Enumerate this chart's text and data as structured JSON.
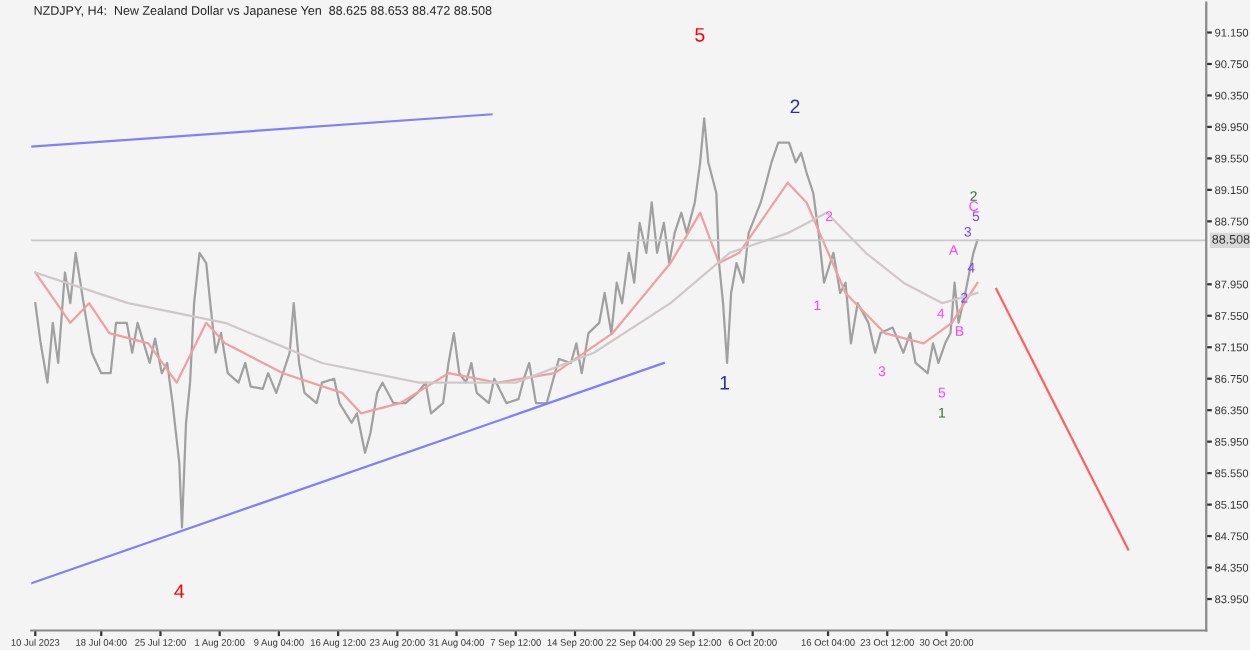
{
  "chart_data": {
    "type": "line",
    "title": "NZDJPY, H4:  New Zealand Dollar vs Japanese Yen  88.625 88.653 88.472 88.508",
    "xlim": [
      "2023-07-09T12:00",
      "2023-12-02T00:00"
    ],
    "xticks": [
      {
        "value": "2023-07-10T00:00",
        "label": "10 Jul 2023"
      },
      {
        "value": "2023-07-18T04:00",
        "label": "18 Jul 04:00"
      },
      {
        "value": "2023-07-25T12:00",
        "label": "25 Jul 12:00"
      },
      {
        "value": "2023-08-01T20:00",
        "label": "1 Aug 20:00"
      },
      {
        "value": "2023-08-09T04:00",
        "label": "9 Aug 04:00"
      },
      {
        "value": "2023-08-16T12:00",
        "label": "16 Aug 12:00"
      },
      {
        "value": "2023-08-23T20:00",
        "label": "23 Aug 20:00"
      },
      {
        "value": "2023-08-31T04:00",
        "label": "31 Aug 04:00"
      },
      {
        "value": "2023-09-07T12:00",
        "label": "7 Sep 12:00"
      },
      {
        "value": "2023-09-14T20:00",
        "label": "14 Sep 20:00"
      },
      {
        "value": "2023-09-22T04:00",
        "label": "22 Sep 04:00"
      },
      {
        "value": "2023-09-29T12:00",
        "label": "29 Sep 12:00"
      },
      {
        "value": "2023-10-06T20:00",
        "label": "6 Oct 20:00"
      },
      {
        "value": "2023-10-16T04:00",
        "label": "16 Oct 04:00"
      },
      {
        "value": "2023-10-23T12:00",
        "label": "23 Oct 12:00"
      },
      {
        "value": "2023-10-30T20:00",
        "label": "30 Oct 20:00"
      }
    ],
    "ylim": [
      83.55,
      91.53
    ],
    "yticks": [
      {
        "value": 91.15,
        "label": "91.150"
      },
      {
        "value": 90.75,
        "label": "90.750"
      },
      {
        "value": 90.35,
        "label": "90.350"
      },
      {
        "value": 89.95,
        "label": "89.950"
      },
      {
        "value": 89.55,
        "label": "89.550"
      },
      {
        "value": 89.15,
        "label": "89.150"
      },
      {
        "value": 88.75,
        "label": "88.750"
      },
      {
        "value": 87.95,
        "label": "87.950"
      },
      {
        "value": 87.55,
        "label": "87.550"
      },
      {
        "value": 87.15,
        "label": "87.150"
      },
      {
        "value": 86.75,
        "label": "86.750"
      },
      {
        "value": 86.35,
        "label": "86.350"
      },
      {
        "value": 85.95,
        "label": "85.950"
      },
      {
        "value": 85.55,
        "label": "85.550"
      },
      {
        "value": 85.15,
        "label": "85.150"
      },
      {
        "value": 84.75,
        "label": "84.750"
      },
      {
        "value": 84.35,
        "label": "84.350"
      },
      {
        "value": 83.95,
        "label": "83.950"
      }
    ],
    "ref_lines": [
      {
        "axis": "y",
        "value": 88.508,
        "label": "88.508",
        "color": "#c8c8c8"
      }
    ],
    "series": [
      {
        "color": "#a0a0a0",
        "x": [
          "2023-07-10T00:00",
          "2023-07-10T16:00",
          "2023-07-11T12:00",
          "2023-07-12T04:00",
          "2023-07-12T20:00",
          "2023-07-13T16:00",
          "2023-07-14T08:00",
          "2023-07-15T00:00",
          "2023-07-16T04:00",
          "2023-07-17T00:00",
          "2023-07-18T04:00",
          "2023-07-19T08:00",
          "2023-07-20T00:00",
          "2023-07-21T08:00",
          "2023-07-22T00:00",
          "2023-07-22T16:00",
          "2023-07-24T04:00",
          "2023-07-24T20:00",
          "2023-07-25T16:00",
          "2023-07-26T08:00",
          "2023-07-27T00:00",
          "2023-07-27T20:00",
          "2023-07-28T04:00",
          "2023-07-28T16:00",
          "2023-07-29T04:00",
          "2023-07-29T16:00",
          "2023-07-30T08:00",
          "2023-07-31T04:00",
          "2023-07-31T16:00",
          "2023-08-01T08:00",
          "2023-08-02T00:00",
          "2023-08-02T20:00",
          "2023-08-04T04:00",
          "2023-08-05T00:00",
          "2023-08-05T16:00",
          "2023-08-07T04:00",
          "2023-08-07T20:00",
          "2023-08-08T20:00",
          "2023-08-09T16:00",
          "2023-08-10T12:00",
          "2023-08-11T00:00",
          "2023-08-11T16:00",
          "2023-08-12T08:00",
          "2023-08-13T20:00",
          "2023-08-14T12:00",
          "2023-08-16T00:00",
          "2023-08-16T16:00",
          "2023-08-18T04:00",
          "2023-08-18T20:00",
          "2023-08-19T20:00",
          "2023-08-20T12:00",
          "2023-08-21T08:00",
          "2023-08-22T00:00",
          "2023-08-23T08:00",
          "2023-08-24T20:00",
          "2023-08-26T08:00",
          "2023-08-27T08:00",
          "2023-08-28T00:00",
          "2023-08-29T12:00",
          "2023-08-30T04:00",
          "2023-08-30T20:00",
          "2023-08-31T12:00",
          "2023-09-01T08:00",
          "2023-09-02T00:00",
          "2023-09-02T16:00",
          "2023-09-04T04:00",
          "2023-09-04T20:00",
          "2023-09-06T08:00",
          "2023-09-07T20:00",
          "2023-09-08T12:00",
          "2023-09-09T04:00",
          "2023-09-10T00:00",
          "2023-09-11T08:00",
          "2023-09-12T20:00",
          "2023-09-14T08:00",
          "2023-09-15T00:00",
          "2023-09-15T16:00",
          "2023-09-16T12:00",
          "2023-09-17T20:00",
          "2023-09-18T12:00",
          "2023-09-19T08:00",
          "2023-09-20T00:00",
          "2023-09-20T16:00",
          "2023-09-21T12:00",
          "2023-09-22T04:00",
          "2023-09-22T20:00",
          "2023-09-23T16:00",
          "2023-09-24T08:00",
          "2023-09-25T00:00",
          "2023-09-25T20:00",
          "2023-09-26T12:00",
          "2023-09-27T04:00",
          "2023-09-28T00:00",
          "2023-09-28T16:00",
          "2023-09-29T16:00",
          "2023-09-30T08:00",
          "2023-09-30T20:00",
          "2023-10-01T08:00",
          "2023-10-02T08:00",
          "2023-10-02T16:00",
          "2023-10-03T04:00",
          "2023-10-03T16:00",
          "2023-10-04T04:00",
          "2023-10-04T20:00",
          "2023-10-05T16:00",
          "2023-10-06T08:00",
          "2023-10-07T20:00",
          "2023-10-08T12:00",
          "2023-10-09T04:00",
          "2023-10-10T00:00",
          "2023-10-11T08:00",
          "2023-10-12T04:00",
          "2023-10-12T20:00",
          "2023-10-13T12:00",
          "2023-10-14T08:00",
          "2023-10-15T00:00",
          "2023-10-15T16:00",
          "2023-10-16T20:00",
          "2023-10-17T16:00",
          "2023-10-18T08:00",
          "2023-10-19T00:00",
          "2023-10-19T20:00",
          "2023-10-21T04:00",
          "2023-10-22T00:00",
          "2023-10-22T16:00",
          "2023-10-24T04:00",
          "2023-10-25T12:00",
          "2023-10-26T08:00",
          "2023-10-27T00:00",
          "2023-10-28T12:00",
          "2023-10-29T04:00",
          "2023-10-29T20:00",
          "2023-10-30T16:00",
          "2023-10-31T08:00",
          "2023-10-31T20:00",
          "2023-11-01T08:00",
          "2023-11-02T04:00",
          "2023-11-02T16:00",
          "2023-11-03T04:00",
          "2023-11-03T16:00"
        ],
        "values": [
          87.71,
          87.2,
          86.7,
          87.46,
          86.95,
          88.1,
          87.71,
          88.35,
          87.59,
          87.08,
          86.82,
          86.82,
          87.46,
          87.46,
          87.08,
          87.46,
          86.95,
          87.26,
          86.82,
          86.95,
          86.44,
          85.68,
          84.86,
          86.19,
          86.7,
          87.71,
          88.35,
          88.22,
          87.71,
          87.08,
          87.33,
          86.82,
          86.7,
          86.95,
          86.65,
          86.62,
          86.82,
          86.57,
          86.82,
          87.08,
          87.71,
          86.95,
          86.57,
          86.44,
          86.7,
          86.75,
          86.44,
          86.19,
          86.31,
          85.81,
          86.06,
          86.57,
          86.7,
          86.44,
          86.44,
          86.57,
          86.7,
          86.31,
          86.44,
          86.95,
          87.33,
          86.82,
          86.7,
          86.95,
          86.57,
          86.44,
          86.75,
          86.44,
          86.49,
          86.75,
          86.95,
          86.44,
          86.44,
          87.0,
          86.95,
          87.2,
          86.82,
          87.33,
          87.46,
          87.84,
          87.33,
          87.97,
          87.71,
          88.35,
          87.97,
          88.73,
          88.35,
          88.99,
          88.35,
          88.73,
          88.22,
          88.6,
          88.86,
          88.6,
          88.99,
          89.5,
          90.06,
          89.5,
          89.11,
          88.22,
          87.71,
          86.95,
          87.84,
          88.22,
          87.97,
          88.6,
          88.99,
          89.24,
          89.5,
          89.75,
          89.75,
          89.5,
          89.62,
          89.37,
          89.11,
          88.6,
          87.97,
          88.35,
          87.84,
          87.97,
          87.2,
          87.71,
          87.46,
          87.08,
          87.33,
          87.4,
          87.08,
          87.33,
          86.95,
          86.82,
          87.2,
          86.95,
          87.2,
          87.33,
          87.97,
          87.46,
          87.84,
          88.1,
          88.35,
          88.51
        ]
      },
      {
        "color": "#f0a0a0",
        "x": [
          "2023-07-10T00:00",
          "2023-07-14T08:00",
          "2023-07-16T16:00",
          "2023-07-19T04:00",
          "2023-07-24T00:00",
          "2023-07-27T12:00",
          "2023-07-31T04:00",
          "2023-08-02T12:00",
          "2023-08-09T16:00",
          "2023-08-17T00:00",
          "2023-08-19T08:00",
          "2023-08-24T04:00",
          "2023-08-30T04:00",
          "2023-09-05T04:00",
          "2023-09-12T08:00",
          "2023-09-19T12:00",
          "2023-09-26T16:00",
          "2023-09-30T08:00",
          "2023-10-02T16:00",
          "2023-10-05T04:00",
          "2023-10-11T04:00",
          "2023-10-13T12:00",
          "2023-10-18T08:00",
          "2023-10-23T04:00",
          "2023-10-28T00:00",
          "2023-10-31T12:00",
          "2023-11-03T16:00"
        ],
        "values": [
          88.1,
          87.46,
          87.71,
          87.33,
          87.2,
          86.7,
          87.46,
          87.2,
          86.82,
          86.57,
          86.31,
          86.44,
          86.82,
          86.7,
          86.82,
          87.33,
          88.22,
          88.86,
          88.22,
          88.35,
          89.24,
          88.99,
          87.84,
          87.33,
          87.2,
          87.46,
          87.97
        ]
      },
      {
        "color": "#d0c8c8",
        "x": [
          "2023-07-10T00:00",
          "2023-07-21T12:00",
          "2023-08-02T12:00",
          "2023-08-14T12:00",
          "2023-08-26T12:00",
          "2023-09-07T12:00",
          "2023-09-17T04:00",
          "2023-09-26T16:00",
          "2023-10-04T00:00",
          "2023-10-11T04:00",
          "2023-10-16T00:00",
          "2023-10-20T20:00",
          "2023-10-25T12:00",
          "2023-10-30T08:00",
          "2023-11-03T16:00"
        ],
        "values": [
          88.1,
          87.71,
          87.46,
          86.95,
          86.7,
          86.7,
          87.08,
          87.71,
          88.35,
          88.6,
          88.86,
          88.35,
          87.97,
          87.71,
          87.84
        ]
      },
      {
        "color": "#8080ff",
        "x": [
          "2023-07-09T12:00",
          "2023-09-04T12:00"
        ],
        "values": [
          89.7,
          90.11
        ]
      },
      {
        "color": "#8080ff",
        "x": [
          "2023-07-09T12:00",
          "2023-09-25T20:00"
        ],
        "values": [
          84.15,
          86.95
        ]
      },
      {
        "color": "#ff6060",
        "x": [
          "2023-11-06T00:00",
          "2023-11-22T08:00"
        ],
        "values": [
          87.89,
          84.58
        ]
      }
    ],
    "annotations": [
      "5",
      "4",
      "2",
      "1",
      "1",
      "2",
      "3",
      "4",
      "5",
      "1",
      "A",
      "B",
      "2",
      "C",
      "5",
      "3",
      "4",
      "2"
    ]
  }
}
